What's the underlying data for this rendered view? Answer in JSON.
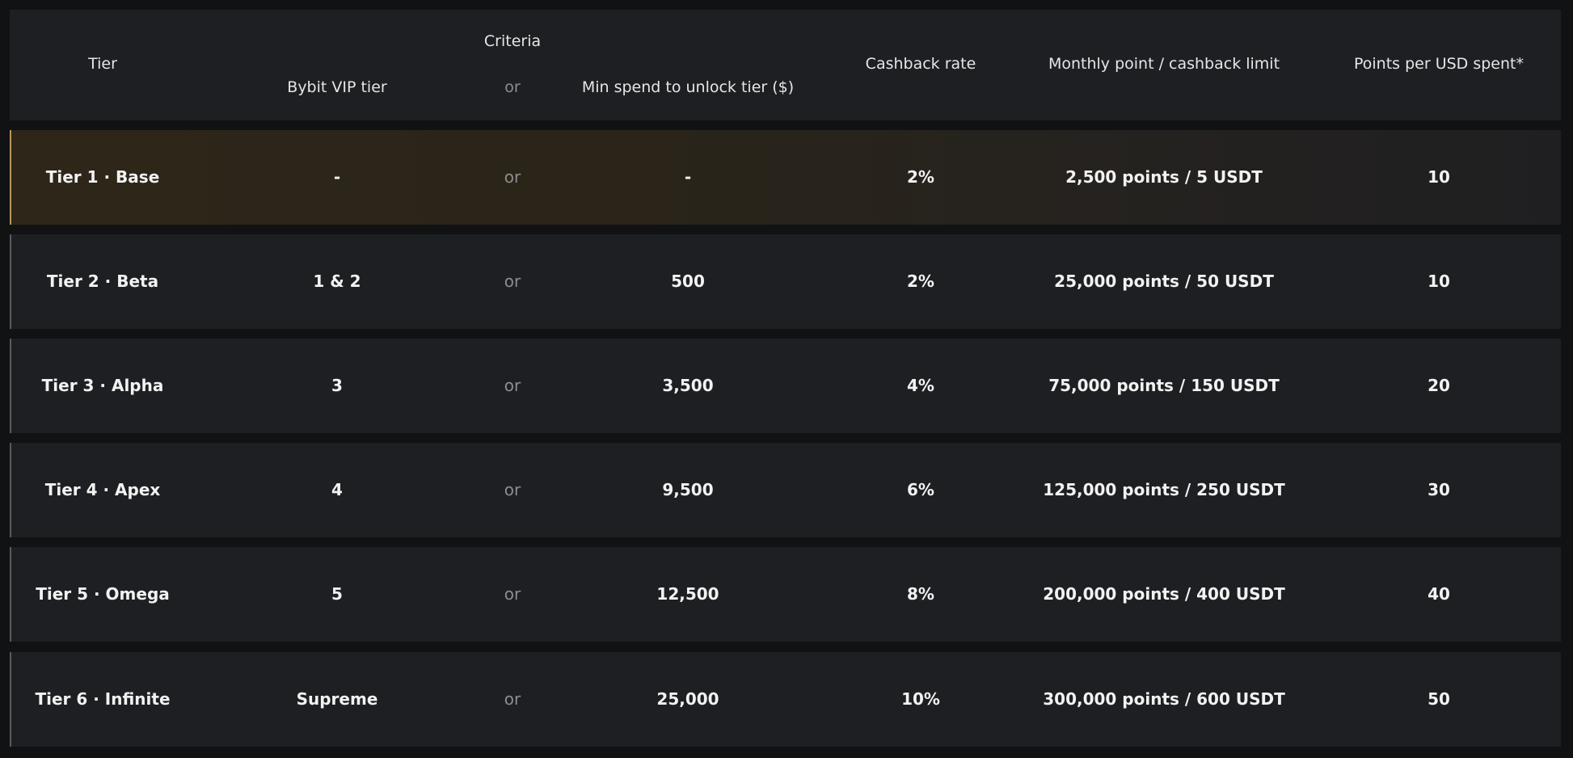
{
  "table": {
    "header": {
      "tier": "Tier",
      "criteria": "Criteria",
      "vip": "Bybit VIP tier",
      "or": "or",
      "min_spend": "Min spend to unlock tier ($)",
      "cashback": "Cashback rate",
      "limit": "Monthly point / cashback limit",
      "points": "Points per USD spent*"
    },
    "rows": [
      [
        "Tier 1 · Base",
        "-",
        "or",
        "-",
        "2%",
        "2,500 points / 5 USDT",
        "10"
      ],
      [
        "Tier 2 · Beta",
        "1 & 2",
        "or",
        "500",
        "2%",
        "25,000 points / 50 USDT",
        "10"
      ],
      [
        "Tier 3 · Alpha",
        "3",
        "or",
        "3,500",
        "4%",
        "75,000 points / 150 USDT",
        "20"
      ],
      [
        "Tier 4 · Apex",
        "4",
        "or",
        "9,500",
        "6%",
        "125,000 points / 250 USDT",
        "30"
      ],
      [
        "Tier 5 · Omega",
        "5",
        "or",
        "12,500",
        "8%",
        "200,000 points / 400 USDT",
        "40"
      ],
      [
        "Tier 6 · Infinite",
        "Supreme",
        "or",
        "25,000",
        "10%",
        "300,000 points / 600 USDT",
        "50"
      ]
    ]
  }
}
